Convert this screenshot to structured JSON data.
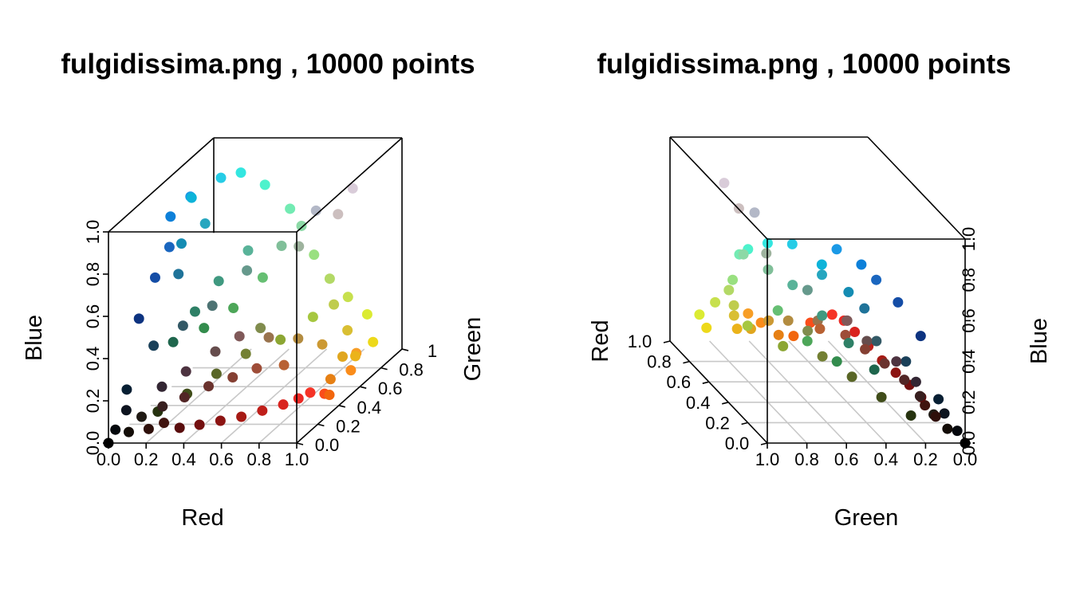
{
  "chart_data": [
    {
      "type": "scatter",
      "title": "fulgidissima.png , 10000 points",
      "xlabel": "Red",
      "ylabel": "Blue",
      "zlabel": "Green",
      "x_axis": "Red",
      "y_axis": "Green",
      "z_axis": "Blue",
      "xlim": [
        0,
        1
      ],
      "ylim": [
        0,
        1
      ],
      "zlim": [
        0,
        1
      ],
      "x_ticks": [
        "0.0",
        "0.2",
        "0.4",
        "0.6",
        "0.8",
        "1.0"
      ],
      "y_ticks": [
        "0.0",
        "0.2",
        "0.4",
        "0.6",
        "0.8",
        "1"
      ],
      "z_ticks": [
        "0.0",
        "0.2",
        "0.4",
        "0.6",
        "0.8",
        "1.0"
      ],
      "grid": true,
      "points": [
        [
          0.0,
          0.0,
          0.0
        ],
        [
          0.02,
          0.03,
          0.05
        ],
        [
          0.05,
          0.08,
          0.12
        ],
        [
          0.03,
          0.12,
          0.2
        ],
        [
          0.08,
          0.05,
          0.03
        ],
        [
          0.12,
          0.1,
          0.08
        ],
        [
          0.18,
          0.06,
          0.04
        ],
        [
          0.25,
          0.08,
          0.06
        ],
        [
          0.35,
          0.05,
          0.05
        ],
        [
          0.45,
          0.06,
          0.06
        ],
        [
          0.55,
          0.08,
          0.07
        ],
        [
          0.65,
          0.1,
          0.08
        ],
        [
          0.75,
          0.12,
          0.1
        ],
        [
          0.85,
          0.14,
          0.12
        ],
        [
          0.92,
          0.16,
          0.14
        ],
        [
          0.96,
          0.2,
          0.15
        ],
        [
          0.98,
          0.3,
          0.1
        ],
        [
          0.95,
          0.4,
          0.05
        ],
        [
          0.9,
          0.5,
          0.08
        ],
        [
          0.98,
          0.55,
          0.1
        ],
        [
          0.97,
          0.62,
          0.15
        ],
        [
          0.92,
          0.7,
          0.1
        ],
        [
          0.85,
          0.75,
          0.2
        ],
        [
          0.75,
          0.8,
          0.3
        ],
        [
          0.7,
          0.85,
          0.4
        ],
        [
          0.6,
          0.88,
          0.5
        ],
        [
          0.5,
          0.75,
          0.6
        ],
        [
          0.4,
          0.6,
          0.55
        ],
        [
          0.3,
          0.45,
          0.45
        ],
        [
          0.2,
          0.35,
          0.4
        ],
        [
          0.1,
          0.25,
          0.35
        ],
        [
          0.05,
          0.2,
          0.5
        ],
        [
          0.08,
          0.3,
          0.65
        ],
        [
          0.1,
          0.4,
          0.75
        ],
        [
          0.05,
          0.5,
          0.85
        ],
        [
          0.1,
          0.6,
          0.9
        ],
        [
          0.05,
          0.7,
          0.85
        ],
        [
          0.15,
          0.8,
          0.9
        ],
        [
          0.2,
          0.9,
          0.88
        ],
        [
          0.3,
          0.95,
          0.8
        ],
        [
          0.45,
          0.92,
          0.7
        ],
        [
          0.55,
          0.85,
          0.65
        ],
        [
          0.8,
          0.75,
          0.75
        ],
        [
          0.85,
          0.8,
          0.85
        ],
        [
          0.7,
          0.72,
          0.78
        ],
        [
          0.62,
          0.7,
          0.62
        ],
        [
          0.5,
          0.55,
          0.3
        ],
        [
          0.45,
          0.5,
          0.2
        ],
        [
          0.35,
          0.4,
          0.15
        ],
        [
          0.25,
          0.3,
          0.1
        ],
        [
          0.15,
          0.2,
          0.06
        ],
        [
          0.2,
          0.15,
          0.2
        ],
        [
          0.3,
          0.2,
          0.25
        ],
        [
          0.4,
          0.3,
          0.3
        ],
        [
          0.5,
          0.35,
          0.35
        ],
        [
          0.6,
          0.45,
          0.3
        ],
        [
          0.7,
          0.55,
          0.25
        ],
        [
          0.8,
          0.6,
          0.2
        ],
        [
          0.88,
          0.65,
          0.12
        ],
        [
          0.72,
          0.38,
          0.2
        ],
        [
          0.62,
          0.3,
          0.22
        ],
        [
          0.52,
          0.25,
          0.2
        ],
        [
          0.42,
          0.2,
          0.18
        ],
        [
          0.32,
          0.15,
          0.15
        ],
        [
          0.22,
          0.12,
          0.12
        ],
        [
          0.12,
          0.4,
          0.3
        ],
        [
          0.18,
          0.5,
          0.4
        ],
        [
          0.25,
          0.6,
          0.5
        ],
        [
          0.35,
          0.7,
          0.6
        ],
        [
          0.15,
          0.65,
          0.75
        ],
        [
          0.08,
          0.55,
          0.7
        ],
        [
          0.12,
          0.45,
          0.6
        ],
        [
          0.2,
          0.55,
          0.3
        ],
        [
          0.3,
          0.65,
          0.35
        ],
        [
          0.4,
          0.75,
          0.45
        ],
        [
          0.55,
          0.65,
          0.2
        ],
        [
          0.65,
          0.78,
          0.25
        ],
        [
          0.78,
          0.88,
          0.3
        ],
        [
          0.86,
          0.92,
          0.2
        ],
        [
          0.93,
          0.85,
          0.1
        ]
      ]
    },
    {
      "type": "scatter",
      "title": "fulgidissima.png , 10000 points",
      "xlabel": "Green",
      "ylabel": "Red",
      "zlabel": "Blue",
      "x_axis": "Green",
      "y_axis": "Red",
      "z_axis": "Blue",
      "xlim": [
        1,
        0
      ],
      "ylim": [
        0,
        1
      ],
      "zlim": [
        0,
        1
      ],
      "x_ticks": [
        "1.0",
        "0.8",
        "0.6",
        "0.4",
        "0.2",
        "0.0"
      ],
      "y_ticks": [
        "0.0",
        "0.2",
        "0.4",
        "0.6",
        "0.8",
        "1.0"
      ],
      "z_ticks": [
        "0.0",
        "0.2",
        "0.4",
        "0.6",
        "0.8",
        "1.0"
      ],
      "grid": true
    }
  ]
}
